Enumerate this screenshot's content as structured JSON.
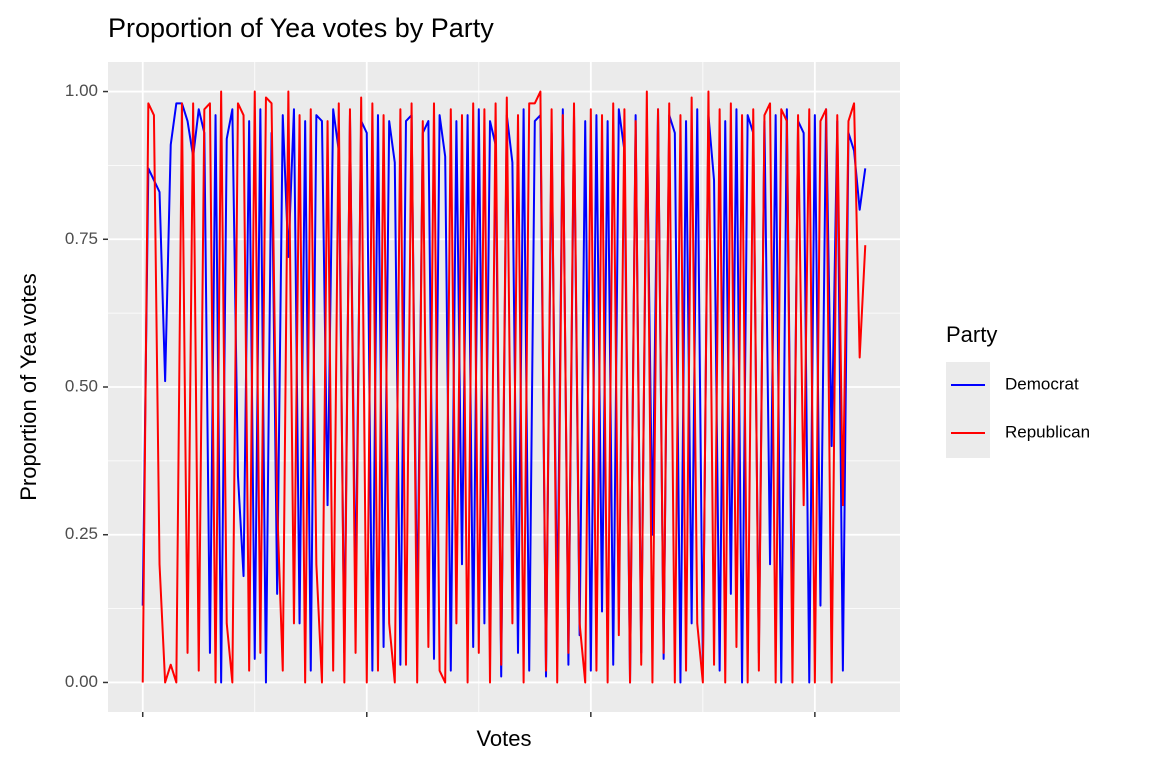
{
  "chart_data": {
    "type": "line",
    "title": "Proportion of Yea votes by Party",
    "x_label": "Votes",
    "y_label": "Proportion of Yea votes",
    "legend_title": "Party",
    "legend_position": "right",
    "grid": true,
    "xlim": [
      -31,
      676
    ],
    "xticks": [
      0,
      200,
      400,
      600
    ],
    "ylim": [
      -0.05,
      1.05
    ],
    "yticks": [
      {
        "value": 0,
        "label": "0.00"
      },
      {
        "value": 0.25,
        "label": "0.25"
      },
      {
        "value": 0.5,
        "label": "0.50"
      },
      {
        "value": 0.75,
        "label": "0.75"
      },
      {
        "value": 1,
        "label": "1.00"
      }
    ],
    "x": [
      0,
      5,
      10,
      15,
      20,
      25,
      30,
      35,
      40,
      45,
      50,
      55,
      60,
      65,
      70,
      75,
      80,
      85,
      90,
      95,
      100,
      105,
      110,
      115,
      120,
      125,
      130,
      135,
      140,
      145,
      150,
      155,
      160,
      165,
      170,
      175,
      180,
      185,
      190,
      195,
      200,
      205,
      210,
      215,
      220,
      225,
      230,
      235,
      240,
      245,
      250,
      255,
      260,
      265,
      270,
      275,
      280,
      285,
      290,
      295,
      300,
      305,
      310,
      315,
      320,
      325,
      330,
      335,
      340,
      345,
      350,
      355,
      360,
      365,
      370,
      375,
      380,
      385,
      390,
      395,
      400,
      405,
      410,
      415,
      420,
      425,
      430,
      435,
      440,
      445,
      450,
      455,
      460,
      465,
      470,
      475,
      480,
      485,
      490,
      495,
      500,
      505,
      510,
      515,
      520,
      525,
      530,
      535,
      540,
      545,
      550,
      555,
      560,
      565,
      570,
      575,
      580,
      585,
      590,
      595,
      600,
      605,
      610,
      615,
      620,
      625,
      630,
      635,
      640,
      645
    ],
    "series": [
      {
        "name": "Democrat",
        "color": "#0000ff",
        "values": [
          0.13,
          0.87,
          0.85,
          0.83,
          0.51,
          0.91,
          0.98,
          0.98,
          0.95,
          0.89,
          0.97,
          0.93,
          0.05,
          0.96,
          0.0,
          0.92,
          0.97,
          0.35,
          0.18,
          0.95,
          0.04,
          0.97,
          0.0,
          0.93,
          0.15,
          0.96,
          0.72,
          0.97,
          0.1,
          0.95,
          0.02,
          0.96,
          0.95,
          0.3,
          0.97,
          0.9,
          0.05,
          0.96,
          0.14,
          0.95,
          0.93,
          0.02,
          0.96,
          0.06,
          0.95,
          0.88,
          0.03,
          0.95,
          0.96,
          0.1,
          0.93,
          0.95,
          0.04,
          0.96,
          0.89,
          0.02,
          0.95,
          0.2,
          0.96,
          0.06,
          0.97,
          0.1,
          0.95,
          0.91,
          0.01,
          0.96,
          0.88,
          0.05,
          0.97,
          0.02,
          0.95,
          0.96,
          0.01,
          0.93,
          0.1,
          0.97,
          0.03,
          0.96,
          0.08,
          0.95,
          0.02,
          0.96,
          0.12,
          0.95,
          0.03,
          0.97,
          0.9,
          0.0,
          0.96,
          0.05,
          0.95,
          0.25,
          0.97,
          0.04,
          0.96,
          0.93,
          0.0,
          0.95,
          0.1,
          0.97,
          0.03,
          0.96,
          0.85,
          0.02,
          0.95,
          0.15,
          0.97,
          0.0,
          0.96,
          0.93,
          0.05,
          0.95,
          0.2,
          0.96,
          0.0,
          0.97,
          0.06,
          0.95,
          0.93,
          0.0,
          0.96,
          0.13,
          0.97,
          0.4,
          0.95,
          0.02,
          0.93,
          0.9,
          0.8,
          0.87
        ]
      },
      {
        "name": "Republican",
        "color": "#ff0000",
        "values": [
          0.0,
          0.98,
          0.96,
          0.2,
          0.0,
          0.03,
          0.0,
          0.98,
          0.05,
          0.98,
          0.02,
          0.97,
          0.98,
          0.0,
          1.0,
          0.1,
          0.0,
          0.98,
          0.96,
          0.02,
          1.0,
          0.05,
          0.99,
          0.98,
          0.3,
          0.02,
          1.0,
          0.1,
          0.96,
          0.0,
          0.97,
          0.2,
          0.0,
          0.95,
          0.02,
          0.98,
          0.0,
          0.97,
          0.05,
          0.99,
          0.0,
          0.98,
          0.02,
          0.96,
          0.1,
          0.0,
          0.97,
          0.03,
          0.98,
          0.0,
          0.95,
          0.06,
          0.98,
          0.02,
          0.0,
          0.97,
          0.1,
          0.96,
          0.0,
          0.98,
          0.05,
          0.97,
          0.0,
          0.98,
          0.03,
          0.99,
          0.1,
          0.96,
          0.0,
          0.98,
          0.98,
          1.0,
          0.02,
          0.97,
          0.0,
          0.96,
          0.05,
          0.98,
          0.1,
          0.0,
          0.97,
          0.02,
          0.96,
          0.0,
          0.98,
          0.08,
          0.97,
          0.0,
          0.95,
          0.03,
          1.0,
          0.0,
          0.97,
          0.05,
          0.98,
          0.0,
          0.96,
          0.02,
          0.99,
          0.1,
          0.0,
          1.0,
          0.03,
          0.97,
          0.0,
          0.98,
          0.06,
          0.96,
          0.0,
          0.97,
          0.02,
          0.96,
          0.98,
          0.0,
          0.97,
          0.95,
          0.0,
          0.96,
          0.3,
          0.97,
          0.0,
          0.95,
          0.97,
          0.0,
          0.96,
          0.3,
          0.95,
          0.98,
          0.55,
          0.74
        ]
      }
    ]
  }
}
